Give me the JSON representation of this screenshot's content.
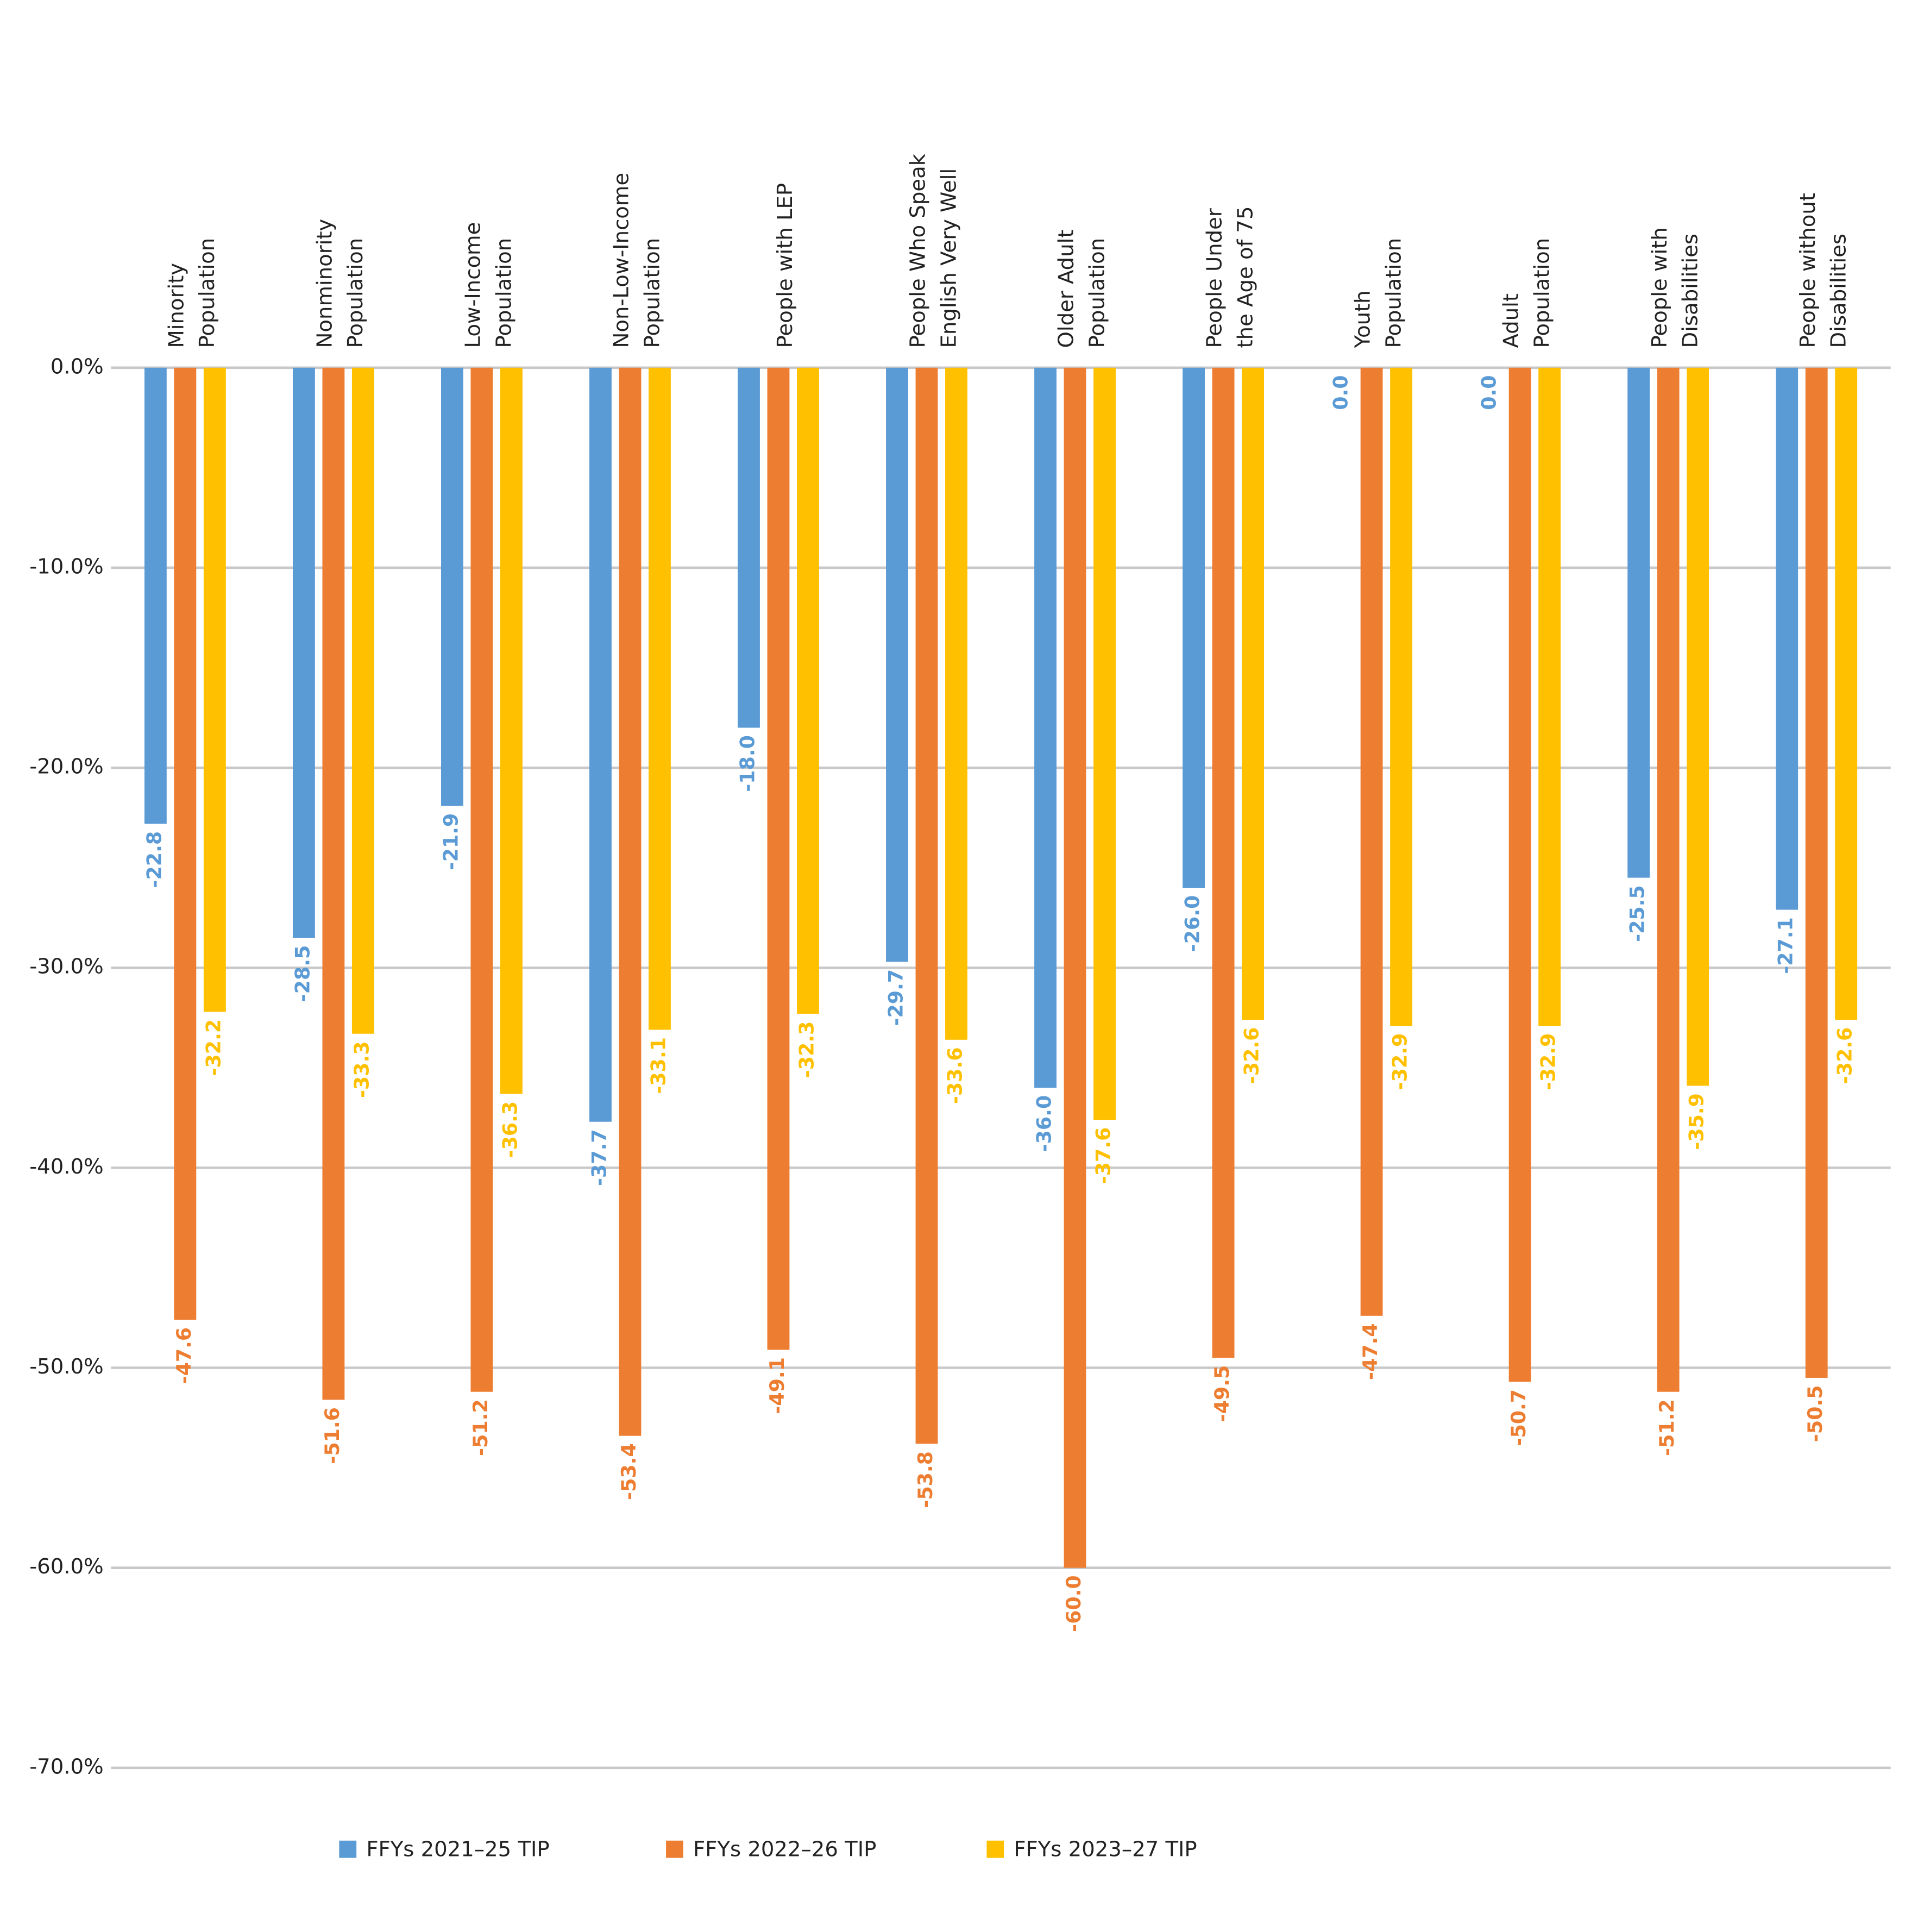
{
  "chart_data": {
    "type": "bar",
    "categories": [
      "Minority\nPopulation",
      "Nonminority\nPopulation",
      "Low-Income\nPopulation",
      "Non-Low-Income\nPopulation",
      "People with LEP",
      "People Who Speak\nEnglish Very Well",
      "Older Adult\nPopulation",
      "People Under\nthe Age of 75",
      "Youth\nPopulation",
      "Adult\nPopulation",
      "People with\nDisabilities",
      "People without\nDisabilities"
    ],
    "series": [
      {
        "name": "FFYs 2021–25 TIP",
        "color": "#5b9bd5",
        "values": [
          -22.8,
          -28.5,
          -21.9,
          -37.7,
          -18.0,
          -29.7,
          -36.0,
          -26.0,
          0.0,
          0.0,
          -25.5,
          -27.1
        ],
        "value_labels": [
          "-22.8",
          "-28.5",
          "-21.9",
          "-37.7",
          "-18.0",
          "-29.7",
          "-36.0",
          "-26.0",
          "0.0",
          "0.0",
          "-25.5",
          "-27.1"
        ]
      },
      {
        "name": "FFYs 2022–26 TIP",
        "color": "#ed7d31",
        "values": [
          -47.6,
          -51.6,
          -51.2,
          -53.4,
          -49.1,
          -53.8,
          -60.0,
          -49.5,
          -47.4,
          -50.7,
          -51.2,
          -50.5
        ],
        "value_labels": [
          "-47.6",
          "-51.6",
          "-51.2",
          "-53.4",
          "-49.1",
          "-53.8",
          "-60.0",
          "-49.5",
          "-47.4",
          "-50.7",
          "-51.2",
          "-50.5"
        ]
      },
      {
        "name": "FFYs 2023–27 TIP",
        "color": "#ffc000",
        "values": [
          -32.2,
          -33.3,
          -36.3,
          -33.1,
          -32.3,
          -33.6,
          -37.6,
          -32.6,
          -32.9,
          -32.9,
          -35.9,
          -32.6
        ],
        "value_labels": [
          "-32.2",
          "-33.3",
          "-36.3",
          "-33.1",
          "-32.3",
          "-33.6",
          "-37.6",
          "-32.6",
          "-32.9",
          "-32.9",
          "-35.9",
          "-32.6"
        ]
      }
    ],
    "ylim": [
      -70,
      0
    ],
    "yticks": [
      {
        "value": 0,
        "label": "0.0%"
      },
      {
        "value": -10,
        "label": "-10.0%"
      },
      {
        "value": -20,
        "label": "-20.0%"
      },
      {
        "value": -30,
        "label": "-30.0%"
      },
      {
        "value": -40,
        "label": "-40.0%"
      },
      {
        "value": -50,
        "label": "-50.0%"
      },
      {
        "value": -60,
        "label": "-60.0%"
      },
      {
        "value": -70,
        "label": "-70.0%"
      }
    ],
    "grid": true,
    "legend": "bottom"
  }
}
